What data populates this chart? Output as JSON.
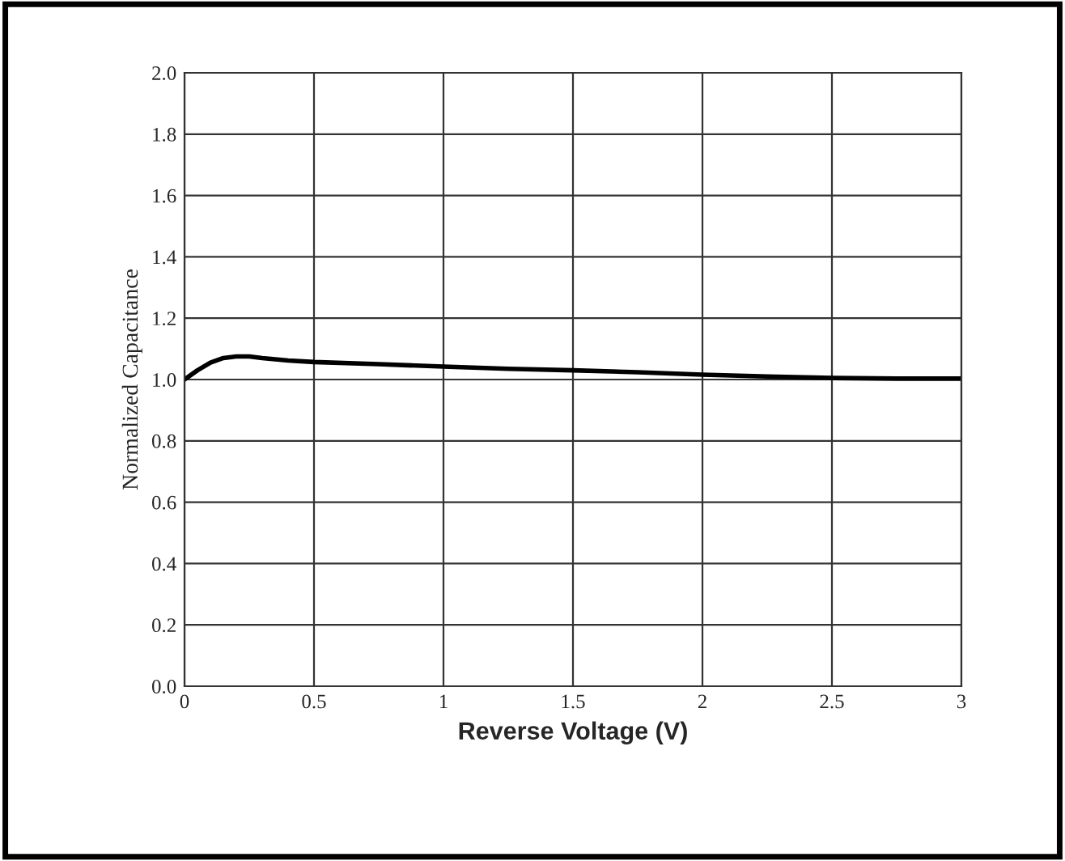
{
  "chart_data": {
    "type": "line",
    "xlabel": "Reverse Voltage (V)",
    "ylabel": "Normalized Capacitance",
    "x": [
      0,
      0.05,
      0.1,
      0.15,
      0.2,
      0.25,
      0.3,
      0.4,
      0.5,
      0.75,
      1.0,
      1.25,
      1.5,
      1.75,
      2.0,
      2.25,
      2.5,
      2.75,
      3.0
    ],
    "series": [
      {
        "color": "#000000",
        "values": [
          1.0,
          1.03,
          1.055,
          1.07,
          1.075,
          1.075,
          1.07,
          1.062,
          1.057,
          1.05,
          1.042,
          1.035,
          1.03,
          1.024,
          1.016,
          1.01,
          1.005,
          1.003,
          1.003
        ]
      }
    ],
    "xlim": [
      0,
      3
    ],
    "xticks": [
      0,
      0.5,
      1,
      1.5,
      2,
      2.5,
      3
    ],
    "ylim": [
      0,
      2
    ],
    "yticks": [
      {
        "value": 0,
        "label": "0.0"
      },
      {
        "value": 0.2,
        "label": "0.2"
      },
      {
        "value": 0.4,
        "label": "0.4"
      },
      {
        "value": 0.6,
        "label": "0.6"
      },
      {
        "value": 0.8,
        "label": "0.8"
      },
      {
        "value": 1.0,
        "label": "1.0"
      },
      {
        "value": 1.2,
        "label": "1.2"
      },
      {
        "value": 1.4,
        "label": "1.4"
      },
      {
        "value": 1.6,
        "label": "1.6"
      },
      {
        "value": 1.8,
        "label": "1.8"
      },
      {
        "value": 2.0,
        "label": "2.0"
      }
    ],
    "grid": true
  }
}
